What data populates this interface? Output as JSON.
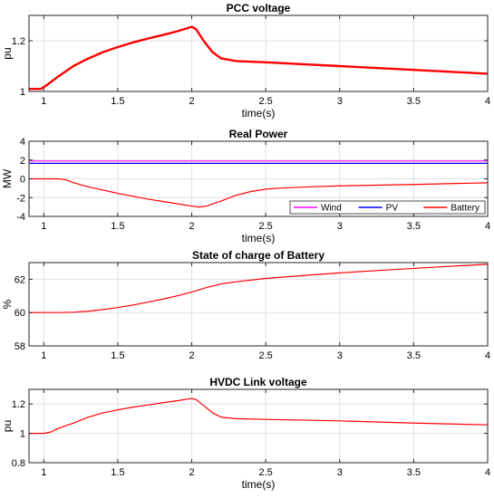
{
  "chart_data": [
    {
      "type": "line",
      "title": "PCC voltage",
      "xlabel": "time(s)",
      "ylabel": "pu",
      "xlim": [
        0.9,
        4
      ],
      "ylim": [
        1.0,
        1.3
      ],
      "xticks": [
        1,
        1.5,
        2,
        2.5,
        3,
        3.5,
        4
      ],
      "xtick_labels": [
        "1",
        "1.5",
        "2",
        "2.5",
        "3",
        "3.5",
        "4"
      ],
      "yticks": [
        1.0,
        1.2
      ],
      "ytick_labels": [
        "1",
        "1.2"
      ],
      "grid": true,
      "series": [
        {
          "color": "#ff0000",
          "width": 2.4,
          "x": [
            0.9,
            0.98,
            1.02,
            1.1,
            1.2,
            1.3,
            1.4,
            1.5,
            1.6,
            1.7,
            1.8,
            1.9,
            2.0,
            2.03,
            2.08,
            2.14,
            2.2,
            2.3,
            2.5,
            3.0,
            3.5,
            4.0
          ],
          "y": [
            1.01,
            1.01,
            1.025,
            1.06,
            1.1,
            1.13,
            1.155,
            1.175,
            1.193,
            1.208,
            1.222,
            1.237,
            1.255,
            1.245,
            1.2,
            1.155,
            1.13,
            1.12,
            1.115,
            1.1,
            1.085,
            1.07
          ]
        }
      ]
    },
    {
      "type": "line",
      "title": "Real Power",
      "xlabel": "time(s)",
      "ylabel": "MW",
      "xlim": [
        0.9,
        4
      ],
      "ylim": [
        -4,
        4
      ],
      "xticks": [
        1,
        1.5,
        2,
        2.5,
        3,
        3.5,
        4
      ],
      "xtick_labels": [
        "1",
        "1.5",
        "2",
        "2.5",
        "3",
        "3.5",
        "4"
      ],
      "yticks": [
        -4,
        -2,
        0,
        2,
        4
      ],
      "ytick_labels": [
        "-4",
        "-2",
        "0",
        "2",
        "4"
      ],
      "grid": true,
      "legend": "bottom-right",
      "series": [
        {
          "name": "Wind",
          "color": "#ff00ff",
          "width": 1.2,
          "x": [
            0.9,
            4.0
          ],
          "y": [
            1.9,
            1.9
          ]
        },
        {
          "name": "PV",
          "color": "#0000ff",
          "width": 1.2,
          "x": [
            0.9,
            4.0
          ],
          "y": [
            1.65,
            1.65
          ]
        },
        {
          "name": "Battery",
          "color": "#ff0000",
          "width": 1.2,
          "x": [
            0.9,
            1.0,
            1.1,
            1.15,
            1.2,
            1.3,
            1.4,
            1.5,
            1.6,
            1.7,
            1.8,
            1.9,
            2.0,
            2.05,
            2.1,
            2.2,
            2.3,
            2.4,
            2.5,
            2.6,
            2.8,
            3.0,
            3.5,
            4.0
          ],
          "y": [
            0.0,
            0.0,
            0.0,
            -0.1,
            -0.4,
            -0.85,
            -1.2,
            -1.55,
            -1.85,
            -2.15,
            -2.4,
            -2.65,
            -2.9,
            -3.0,
            -2.9,
            -2.35,
            -1.75,
            -1.35,
            -1.1,
            -0.98,
            -0.85,
            -0.75,
            -0.6,
            -0.42
          ]
        }
      ]
    },
    {
      "type": "line",
      "title": "State of charge of Battery",
      "xlabel": "",
      "ylabel": "%",
      "xlim": [
        0.9,
        4
      ],
      "ylim": [
        58,
        63
      ],
      "xticks": [
        1,
        1.5,
        2,
        2.5,
        3,
        3.5,
        4
      ],
      "xtick_labels": [
        "1",
        "1.5",
        "2",
        "2.5",
        "3",
        "3.5",
        "4"
      ],
      "yticks": [
        58,
        60,
        62
      ],
      "ytick_labels": [
        "58",
        "60",
        "62"
      ],
      "grid": true,
      "series": [
        {
          "color": "#ff0000",
          "width": 1.2,
          "x": [
            0.9,
            1.0,
            1.1,
            1.2,
            1.3,
            1.4,
            1.5,
            1.6,
            1.7,
            1.8,
            1.9,
            2.0,
            2.1,
            2.2,
            2.3,
            2.5,
            2.75,
            3.0,
            3.25,
            3.5,
            3.75,
            4.0
          ],
          "y": [
            60.0,
            60.0,
            60.0,
            60.02,
            60.08,
            60.18,
            60.3,
            60.45,
            60.62,
            60.8,
            61.0,
            61.23,
            61.5,
            61.72,
            61.85,
            62.05,
            62.22,
            62.38,
            62.52,
            62.65,
            62.78,
            62.9
          ]
        }
      ]
    },
    {
      "type": "line",
      "title": "HVDC Link voltage",
      "xlabel": "time(s)",
      "ylabel": "pu",
      "xlim": [
        0.9,
        4
      ],
      "ylim": [
        0.8,
        1.3
      ],
      "xticks": [
        1,
        1.5,
        2,
        2.5,
        3,
        3.5,
        4
      ],
      "xtick_labels": [
        "1",
        "1.5",
        "2",
        "2.5",
        "3",
        "3.5",
        "4"
      ],
      "yticks": [
        0.8,
        1.0,
        1.2
      ],
      "ytick_labels": [
        "0.8",
        "1",
        "1.2"
      ],
      "grid": true,
      "series": [
        {
          "color": "#ff0000",
          "width": 1.2,
          "x": [
            0.9,
            1.0,
            1.05,
            1.1,
            1.2,
            1.3,
            1.4,
            1.5,
            1.6,
            1.7,
            1.8,
            1.9,
            2.0,
            2.03,
            2.08,
            2.14,
            2.2,
            2.3,
            2.5,
            3.0,
            3.5,
            4.0
          ],
          "y": [
            1.0,
            1.0,
            1.01,
            1.035,
            1.07,
            1.11,
            1.14,
            1.16,
            1.178,
            1.193,
            1.208,
            1.222,
            1.238,
            1.23,
            1.19,
            1.14,
            1.11,
            1.1,
            1.095,
            1.085,
            1.07,
            1.058
          ]
        }
      ]
    }
  ]
}
